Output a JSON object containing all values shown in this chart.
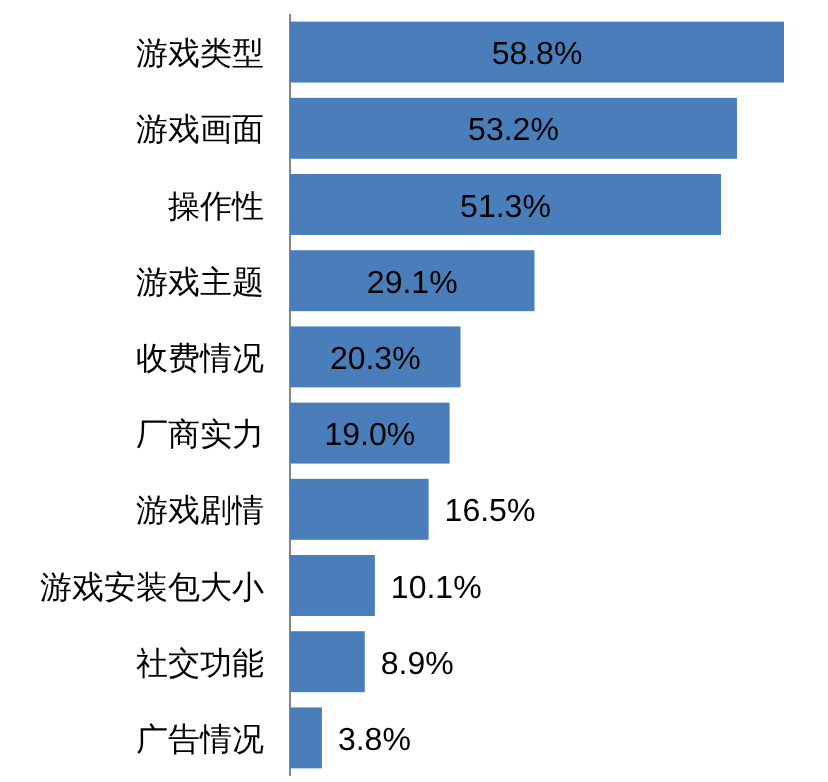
{
  "chart_data": {
    "type": "bar",
    "orientation": "horizontal",
    "categories": [
      "游戏类型",
      "游戏画面",
      "操作性",
      "游戏主题",
      "收费情况",
      "厂商实力",
      "游戏剧情",
      "游戏安装包大小",
      "社交功能",
      "广告情况"
    ],
    "values": [
      58.8,
      53.2,
      51.3,
      29.1,
      20.3,
      19.0,
      16.5,
      10.1,
      8.9,
      3.8
    ],
    "value_labels": [
      "58.8%",
      "53.2%",
      "51.3%",
      "29.1%",
      "20.3%",
      "19.0%",
      "16.5%",
      "10.1%",
      "8.9%",
      "3.8%"
    ],
    "color": "#4a7ebb"
  }
}
